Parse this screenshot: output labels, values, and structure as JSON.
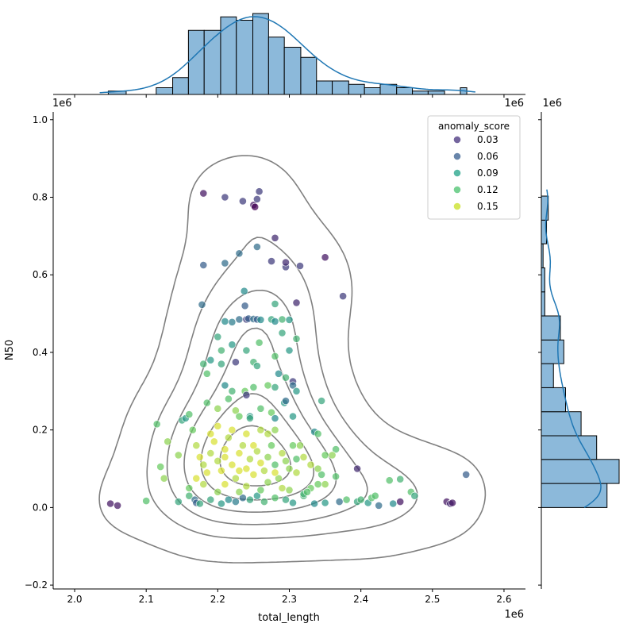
{
  "chart_data": {
    "type": "scatter",
    "kind": "jointplot",
    "xlabel": "total_length",
    "ylabel": "N50",
    "x_multiplier_label": "1e6",
    "y_multiplier_label": "1e6",
    "xlim": [
      1.97,
      2.63
    ],
    "ylim": [
      -0.21,
      1.02
    ],
    "x_ticks": [
      2.0,
      2.1,
      2.2,
      2.3,
      2.4,
      2.5,
      2.6
    ],
    "x_tick_labels": [
      "2.0",
      "2.1",
      "2.2",
      "2.3",
      "2.4",
      "2.5",
      "2.6"
    ],
    "y_ticks": [
      -0.2,
      0.0,
      0.2,
      0.4,
      0.6,
      0.8,
      1.0
    ],
    "y_tick_labels": [
      "−0.2",
      "0.0",
      "0.2",
      "0.4",
      "0.6",
      "0.8",
      "1.0"
    ],
    "legend": {
      "title": "anomaly_score",
      "placement": "upper-right",
      "entries": [
        {
          "label": "0.03",
          "color": "#46327e"
        },
        {
          "label": "0.06",
          "color": "#365c8d"
        },
        {
          "label": "0.09",
          "color": "#1fa187"
        },
        {
          "label": "0.12",
          "color": "#4ac16d"
        },
        {
          "label": "0.15",
          "color": "#c8e020"
        }
      ]
    },
    "points": [
      [
        2.05,
        0.01,
        0.01
      ],
      [
        2.06,
        0.005,
        0.01
      ],
      [
        2.18,
        0.81,
        0.01
      ],
      [
        2.21,
        0.8,
        0.03
      ],
      [
        2.235,
        0.79,
        0.03
      ],
      [
        2.25,
        0.78,
        0.01
      ],
      [
        2.252,
        0.775,
        0.0
      ],
      [
        2.255,
        0.795,
        0.03
      ],
      [
        2.258,
        0.815,
        0.03
      ],
      [
        2.18,
        0.625,
        0.05
      ],
      [
        2.21,
        0.63,
        0.06
      ],
      [
        2.23,
        0.655,
        0.06
      ],
      [
        2.255,
        0.672,
        0.06
      ],
      [
        2.275,
        0.635,
        0.03
      ],
      [
        2.28,
        0.695,
        0.02
      ],
      [
        2.295,
        0.62,
        0.03
      ],
      [
        2.295,
        0.632,
        0.02
      ],
      [
        2.315,
        0.623,
        0.03
      ],
      [
        2.35,
        0.645,
        0.01
      ],
      [
        2.31,
        0.528,
        0.02
      ],
      [
        2.375,
        0.545,
        0.03
      ],
      [
        2.178,
        0.523,
        0.06
      ],
      [
        2.237,
        0.558,
        0.08
      ],
      [
        2.238,
        0.52,
        0.05
      ],
      [
        2.21,
        0.48,
        0.08
      ],
      [
        2.22,
        0.478,
        0.07
      ],
      [
        2.23,
        0.485,
        0.06
      ],
      [
        2.24,
        0.485,
        0.03
      ],
      [
        2.243,
        0.487,
        0.05
      ],
      [
        2.25,
        0.486,
        0.06
      ],
      [
        2.255,
        0.485,
        0.05
      ],
      [
        2.26,
        0.484,
        0.08
      ],
      [
        2.275,
        0.485,
        0.1
      ],
      [
        2.28,
        0.48,
        0.08
      ],
      [
        2.29,
        0.485,
        0.11
      ],
      [
        2.3,
        0.484,
        0.09
      ],
      [
        2.28,
        0.525,
        0.1
      ],
      [
        2.2,
        0.44,
        0.1
      ],
      [
        2.205,
        0.405,
        0.11
      ],
      [
        2.22,
        0.42,
        0.09
      ],
      [
        2.225,
        0.375,
        0.03
      ],
      [
        2.24,
        0.405,
        0.1
      ],
      [
        2.25,
        0.375,
        0.11
      ],
      [
        2.258,
        0.425,
        0.12
      ],
      [
        2.255,
        0.365,
        0.1
      ],
      [
        2.28,
        0.39,
        0.12
      ],
      [
        2.29,
        0.45,
        0.1
      ],
      [
        2.3,
        0.405,
        0.09
      ],
      [
        2.31,
        0.435,
        0.11
      ],
      [
        2.285,
        0.345,
        0.08
      ],
      [
        2.18,
        0.37,
        0.11
      ],
      [
        2.185,
        0.345,
        0.12
      ],
      [
        2.19,
        0.38,
        0.09
      ],
      [
        2.205,
        0.37,
        0.1
      ],
      [
        2.21,
        0.315,
        0.08
      ],
      [
        2.22,
        0.3,
        0.11
      ],
      [
        2.238,
        0.3,
        0.13
      ],
      [
        2.24,
        0.29,
        0.03
      ],
      [
        2.25,
        0.31,
        0.12
      ],
      [
        2.26,
        0.255,
        0.12
      ],
      [
        2.27,
        0.315,
        0.13
      ],
      [
        2.28,
        0.31,
        0.1
      ],
      [
        2.295,
        0.335,
        0.11
      ],
      [
        2.305,
        0.325,
        0.03
      ],
      [
        2.305,
        0.315,
        0.06
      ],
      [
        2.31,
        0.3,
        0.09
      ],
      [
        2.293,
        0.27,
        0.09
      ],
      [
        2.295,
        0.275,
        0.06
      ],
      [
        2.185,
        0.27,
        0.12
      ],
      [
        2.2,
        0.255,
        0.14
      ],
      [
        2.215,
        0.28,
        0.12
      ],
      [
        2.225,
        0.25,
        0.14
      ],
      [
        2.23,
        0.235,
        0.13
      ],
      [
        2.245,
        0.235,
        0.09
      ],
      [
        2.245,
        0.23,
        0.1
      ],
      [
        2.275,
        0.245,
        0.13
      ],
      [
        2.28,
        0.23,
        0.08
      ],
      [
        2.305,
        0.235,
        0.09
      ],
      [
        2.345,
        0.275,
        0.1
      ],
      [
        2.335,
        0.195,
        0.08
      ],
      [
        2.34,
        0.19,
        0.12
      ],
      [
        2.365,
        0.15,
        0.12
      ],
      [
        2.115,
        0.215,
        0.12
      ],
      [
        2.13,
        0.17,
        0.14
      ],
      [
        2.12,
        0.105,
        0.13
      ],
      [
        2.125,
        0.075,
        0.14
      ],
      [
        2.145,
        0.135,
        0.14
      ],
      [
        2.15,
        0.225,
        0.1
      ],
      [
        2.155,
        0.23,
        0.09
      ],
      [
        2.16,
        0.24,
        0.12
      ],
      [
        2.165,
        0.2,
        0.13
      ],
      [
        2.17,
        0.16,
        0.15
      ],
      [
        2.175,
        0.13,
        0.16
      ],
      [
        2.18,
        0.11,
        0.15
      ],
      [
        2.185,
        0.09,
        0.16
      ],
      [
        2.19,
        0.14,
        0.15
      ],
      [
        2.195,
        0.17,
        0.16
      ],
      [
        2.2,
        0.12,
        0.15
      ],
      [
        2.205,
        0.095,
        0.16
      ],
      [
        2.21,
        0.15,
        0.16
      ],
      [
        2.215,
        0.18,
        0.15
      ],
      [
        2.22,
        0.11,
        0.16
      ],
      [
        2.225,
        0.075,
        0.15
      ],
      [
        2.23,
        0.14,
        0.16
      ],
      [
        2.235,
        0.16,
        0.15
      ],
      [
        2.24,
        0.1,
        0.16
      ],
      [
        2.245,
        0.125,
        0.15
      ],
      [
        2.25,
        0.085,
        0.16
      ],
      [
        2.255,
        0.145,
        0.15
      ],
      [
        2.26,
        0.115,
        0.16
      ],
      [
        2.265,
        0.095,
        0.15
      ],
      [
        2.27,
        0.13,
        0.14
      ],
      [
        2.275,
        0.16,
        0.13
      ],
      [
        2.28,
        0.11,
        0.12
      ],
      [
        2.285,
        0.075,
        0.14
      ],
      [
        2.29,
        0.14,
        0.15
      ],
      [
        2.295,
        0.12,
        0.14
      ],
      [
        2.3,
        0.1,
        0.14
      ],
      [
        2.305,
        0.16,
        0.13
      ],
      [
        2.31,
        0.125,
        0.12
      ],
      [
        2.315,
        0.16,
        0.14
      ],
      [
        2.32,
        0.13,
        0.15
      ],
      [
        2.2,
        0.21,
        0.16
      ],
      [
        2.22,
        0.2,
        0.16
      ],
      [
        2.19,
        0.19,
        0.16
      ],
      [
        2.24,
        0.19,
        0.16
      ],
      [
        2.26,
        0.2,
        0.15
      ],
      [
        2.18,
        0.06,
        0.15
      ],
      [
        2.21,
        0.06,
        0.16
      ],
      [
        2.24,
        0.055,
        0.15
      ],
      [
        2.27,
        0.065,
        0.14
      ],
      [
        2.17,
        0.075,
        0.16
      ],
      [
        2.2,
        0.04,
        0.14
      ],
      [
        2.29,
        0.05,
        0.15
      ],
      [
        2.3,
        0.045,
        0.14
      ],
      [
        2.145,
        0.015,
        0.1
      ],
      [
        2.16,
        0.03,
        0.11
      ],
      [
        2.168,
        0.02,
        0.06
      ],
      [
        2.17,
        0.012,
        0.05
      ],
      [
        2.175,
        0.01,
        0.1
      ],
      [
        2.19,
        0.02,
        0.1
      ],
      [
        2.205,
        0.01,
        0.09
      ],
      [
        2.215,
        0.02,
        0.08
      ],
      [
        2.225,
        0.015,
        0.07
      ],
      [
        2.235,
        0.025,
        0.06
      ],
      [
        2.245,
        0.02,
        0.1
      ],
      [
        2.255,
        0.03,
        0.09
      ],
      [
        2.265,
        0.015,
        0.11
      ],
      [
        2.28,
        0.025,
        0.12
      ],
      [
        2.295,
        0.02,
        0.1
      ],
      [
        2.305,
        0.012,
        0.09
      ],
      [
        2.32,
        0.03,
        0.11
      ],
      [
        2.335,
        0.01,
        0.08
      ],
      [
        2.35,
        0.012,
        0.09
      ],
      [
        2.37,
        0.015,
        0.06
      ],
      [
        2.38,
        0.02,
        0.12
      ],
      [
        2.395,
        0.015,
        0.1
      ],
      [
        2.41,
        0.012,
        0.09
      ],
      [
        2.425,
        0.005,
        0.06
      ],
      [
        2.445,
        0.01,
        0.08
      ],
      [
        2.455,
        0.015,
        0.01
      ],
      [
        2.44,
        0.07,
        0.12
      ],
      [
        2.455,
        0.073,
        0.11
      ],
      [
        2.415,
        0.025,
        0.12
      ],
      [
        2.42,
        0.03,
        0.12
      ],
      [
        2.395,
        0.1,
        0.02
      ],
      [
        2.345,
        0.085,
        0.12
      ],
      [
        2.35,
        0.135,
        0.13
      ],
      [
        2.35,
        0.06,
        0.14
      ],
      [
        2.33,
        0.05,
        0.13
      ],
      [
        2.36,
        0.135,
        0.14
      ],
      [
        2.365,
        0.08,
        0.12
      ],
      [
        2.52,
        0.015,
        0.01
      ],
      [
        2.525,
        0.01,
        0.02
      ],
      [
        2.528,
        0.012,
        0.01
      ],
      [
        2.547,
        0.085,
        0.05
      ],
      [
        2.4,
        0.02,
        0.11
      ],
      [
        2.47,
        0.04,
        0.12
      ],
      [
        2.475,
        0.03,
        0.1
      ],
      [
        2.1,
        0.017,
        0.12
      ],
      [
        2.32,
        0.035,
        0.11
      ],
      [
        2.325,
        0.04,
        0.12
      ],
      [
        2.34,
        0.06,
        0.13
      ],
      [
        2.23,
        0.04,
        0.14
      ],
      [
        2.26,
        0.045,
        0.13
      ],
      [
        2.16,
        0.05,
        0.13
      ],
      [
        2.28,
        0.2,
        0.14
      ],
      [
        2.27,
        0.19,
        0.15
      ],
      [
        2.25,
        0.16,
        0.16
      ],
      [
        2.33,
        0.11,
        0.15
      ],
      [
        2.34,
        0.1,
        0.14
      ],
      [
        2.31,
        0.09,
        0.15
      ],
      [
        2.28,
        0.09,
        0.16
      ],
      [
        2.23,
        0.095,
        0.16
      ],
      [
        2.21,
        0.13,
        0.16
      ]
    ],
    "x_histogram": {
      "bin_edges": [
        2.047,
        2.072,
        2.092,
        2.114,
        2.137,
        2.159,
        2.181,
        2.204,
        2.226,
        2.249,
        2.271,
        2.293,
        2.316,
        2.338,
        2.36,
        2.383,
        2.405,
        2.427,
        2.45,
        2.472,
        2.494,
        2.517,
        2.539,
        2.548
      ],
      "counts": [
        1,
        0,
        0,
        2,
        5,
        19,
        19,
        23,
        22,
        24,
        17,
        14,
        11,
        4,
        4,
        3,
        2,
        3,
        2,
        1,
        1,
        0,
        2
      ]
    },
    "y_histogram": {
      "bin_edges": [
        0.0,
        0.062,
        0.124,
        0.185,
        0.247,
        0.309,
        0.371,
        0.432,
        0.494,
        0.556,
        0.618,
        0.68,
        0.741,
        0.803
      ],
      "counts": [
        38,
        45,
        32,
        23,
        14,
        7,
        13,
        11,
        2,
        2,
        1,
        3,
        4
      ]
    }
  }
}
